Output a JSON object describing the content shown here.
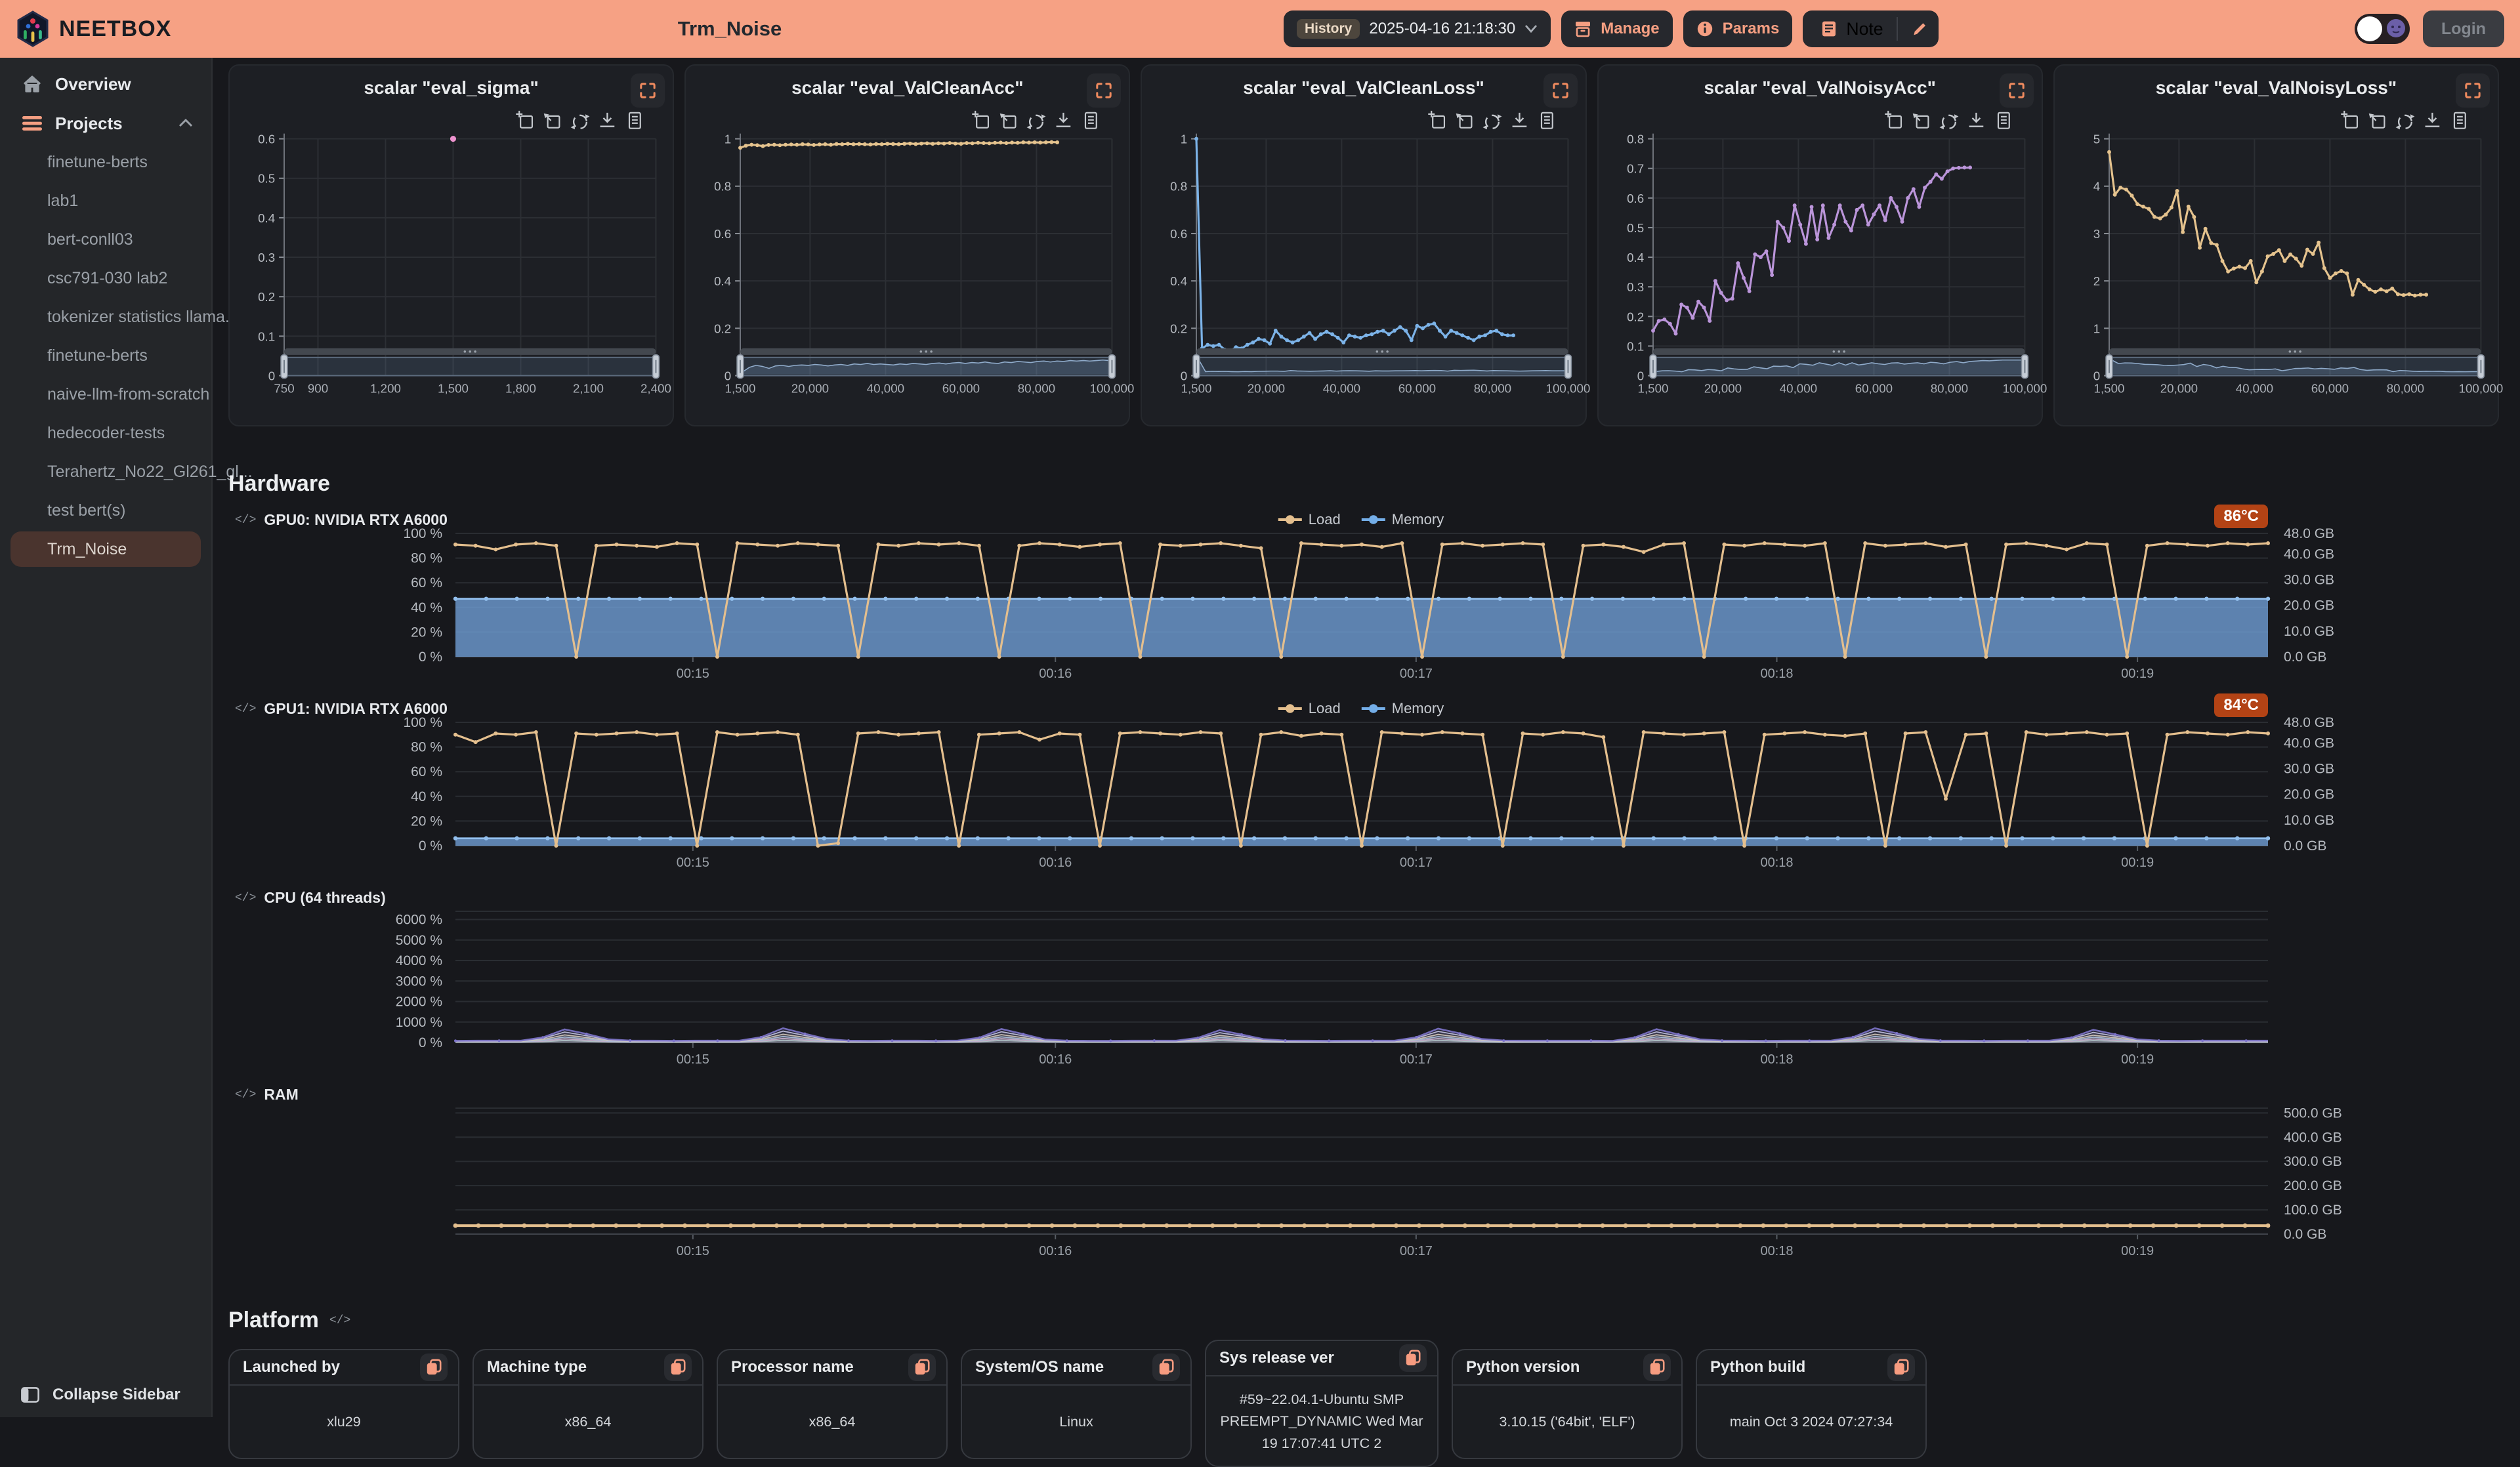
{
  "header": {
    "brand": "NEETBOX",
    "title": "Trm_Noise",
    "history_label": "History",
    "history_value": "2025-04-16 21:18:30",
    "manage_label": "Manage",
    "params_label": "Params",
    "note_label": "Note",
    "login_label": "Login"
  },
  "sidebar": {
    "overview": "Overview",
    "projects": "Projects",
    "items": [
      "finetune-berts",
      "lab1",
      "bert-conll03",
      "csc791-030 lab2",
      "tokenizer statistics llama...",
      "finetune-berts",
      "naive-llm-from-scratch",
      "hedecoder-tests",
      "Terahertz_No22_Gl261_gl...",
      "test bert(s)",
      "Trm_Noise"
    ],
    "collapse": "Collapse Sidebar"
  },
  "sections": {
    "hardware": "Hardware",
    "platform": "Platform"
  },
  "hardware": {
    "legend": {
      "load": "Load",
      "memory": "Memory"
    },
    "gpu0_label": "GPU0: NVIDIA RTX A6000",
    "gpu0_temp": "86°C",
    "gpu1_label": "GPU1: NVIDIA RTX A6000",
    "gpu1_temp": "84°C",
    "cpu_label": "CPU (64 threads)",
    "ram_label": "RAM"
  },
  "platform_cards": [
    {
      "label": "Launched by",
      "value": "xlu29"
    },
    {
      "label": "Machine type",
      "value": "x86_64"
    },
    {
      "label": "Processor name",
      "value": "x86_64"
    },
    {
      "label": "System/OS name",
      "value": "Linux"
    },
    {
      "label": "Sys release ver",
      "value": "#59~22.04.1-Ubuntu SMP PREEMPT_DYNAMIC Wed Mar 19 17:07:41 UTC 2"
    },
    {
      "label": "Python version",
      "value": "3.10.15 ('64bit', 'ELF')"
    },
    {
      "label": "Python build",
      "value": "main Oct 3 2024 07:27:34"
    }
  ],
  "chart_data": {
    "scalars": [
      {
        "kind": "scalar",
        "type": "scatter",
        "title": "scalar \"eval_sigma\"",
        "color": "#ee93cf",
        "x_range": [
          750,
          2400
        ],
        "y_range": [
          0,
          0.6
        ],
        "x_ticks": [
          {
            "v": 750,
            "l": "750"
          },
          {
            "v": 900,
            "l": "900"
          },
          {
            "v": 1200,
            "l": "1,200"
          },
          {
            "v": 1500,
            "l": "1,500"
          },
          {
            "v": 1800,
            "l": "1,800"
          },
          {
            "v": 2100,
            "l": "2,100"
          },
          {
            "v": 2400,
            "l": "2,400"
          }
        ],
        "y_ticks": [
          {
            "v": 0,
            "l": "0"
          },
          {
            "v": 0.1,
            "l": "0.1"
          },
          {
            "v": 0.2,
            "l": "0.2"
          },
          {
            "v": 0.3,
            "l": "0.3"
          },
          {
            "v": 0.4,
            "l": "0.4"
          },
          {
            "v": 0.5,
            "l": "0.5"
          },
          {
            "v": 0.6,
            "l": "0.6"
          }
        ],
        "points_only": true,
        "x": [
          1500
        ],
        "values": [
          0.6
        ]
      },
      {
        "kind": "scalar",
        "type": "line",
        "title": "scalar \"eval_ValCleanAcc\"",
        "color": "#e5c38e",
        "x_range": [
          1500,
          100000
        ],
        "y_range": [
          0,
          1
        ],
        "x_ticks": [
          {
            "v": 1500,
            "l": "1,500"
          },
          {
            "v": 20000,
            "l": "20,000"
          },
          {
            "v": 40000,
            "l": "40,000"
          },
          {
            "v": 60000,
            "l": "60,000"
          },
          {
            "v": 80000,
            "l": "80,000"
          },
          {
            "v": 100000,
            "l": "100,000"
          }
        ],
        "y_ticks": [
          {
            "v": 0,
            "l": "0"
          },
          {
            "v": 0.2,
            "l": "0.2"
          },
          {
            "v": 0.4,
            "l": "0.4"
          },
          {
            "v": 0.6,
            "l": "0.6"
          },
          {
            "v": 0.8,
            "l": "0.8"
          },
          {
            "v": 1,
            "l": "1"
          }
        ],
        "x_start": 1500,
        "x_step": 1500,
        "values": [
          0.962,
          0.971,
          0.975,
          0.973,
          0.969,
          0.974,
          0.975,
          0.973,
          0.975,
          0.976,
          0.975,
          0.977,
          0.976,
          0.974,
          0.976,
          0.977,
          0.975,
          0.978,
          0.977,
          0.979,
          0.977,
          0.978,
          0.977,
          0.976,
          0.978,
          0.977,
          0.979,
          0.978,
          0.977,
          0.979,
          0.98,
          0.978,
          0.98,
          0.981,
          0.979,
          0.981,
          0.98,
          0.982,
          0.98,
          0.979,
          0.982,
          0.981,
          0.983,
          0.982,
          0.981,
          0.983,
          0.984,
          0.982,
          0.984,
          0.983,
          0.985,
          0.984,
          0.985,
          0.984,
          0.985,
          0.986,
          0.985
        ],
        "preview": true
      },
      {
        "kind": "scalar",
        "type": "line",
        "title": "scalar \"eval_ValCleanLoss\"",
        "color": "#7cb3e8",
        "x_range": [
          1500,
          100000
        ],
        "y_range": [
          0,
          1
        ],
        "x_ticks": [
          {
            "v": 1500,
            "l": "1,500"
          },
          {
            "v": 20000,
            "l": "20,000"
          },
          {
            "v": 40000,
            "l": "40,000"
          },
          {
            "v": 60000,
            "l": "60,000"
          },
          {
            "v": 80000,
            "l": "80,000"
          },
          {
            "v": 100000,
            "l": "100,000"
          }
        ],
        "y_ticks": [
          {
            "v": 0,
            "l": "0"
          },
          {
            "v": 0.2,
            "l": "0.2"
          },
          {
            "v": 0.4,
            "l": "0.4"
          },
          {
            "v": 0.6,
            "l": "0.6"
          },
          {
            "v": 0.8,
            "l": "0.8"
          },
          {
            "v": 1,
            "l": "1"
          }
        ],
        "x_start": 1500,
        "x_step": 1500,
        "values": [
          1.0,
          0.115,
          0.13,
          0.125,
          0.13,
          0.11,
          0.105,
          0.12,
          0.115,
          0.13,
          0.14,
          0.155,
          0.15,
          0.135,
          0.19,
          0.165,
          0.15,
          0.14,
          0.15,
          0.165,
          0.18,
          0.155,
          0.175,
          0.185,
          0.175,
          0.16,
          0.14,
          0.17,
          0.165,
          0.16,
          0.17,
          0.175,
          0.185,
          0.19,
          0.175,
          0.19,
          0.205,
          0.19,
          0.15,
          0.21,
          0.2,
          0.215,
          0.22,
          0.19,
          0.165,
          0.19,
          0.18,
          0.17,
          0.16,
          0.15,
          0.165,
          0.17,
          0.185,
          0.19,
          0.175,
          0.17,
          0.17
        ],
        "preview": true
      },
      {
        "kind": "scalar",
        "type": "line",
        "title": "scalar \"eval_ValNoisyAcc\"",
        "color": "#bb95da",
        "x_range": [
          1500,
          100000
        ],
        "y_range": [
          0,
          0.8
        ],
        "x_ticks": [
          {
            "v": 1500,
            "l": "1,500"
          },
          {
            "v": 20000,
            "l": "20,000"
          },
          {
            "v": 40000,
            "l": "40,000"
          },
          {
            "v": 60000,
            "l": "60,000"
          },
          {
            "v": 80000,
            "l": "80,000"
          },
          {
            "v": 100000,
            "l": "100,000"
          }
        ],
        "y_ticks": [
          {
            "v": 0,
            "l": "0"
          },
          {
            "v": 0.1,
            "l": "0.1"
          },
          {
            "v": 0.2,
            "l": "0.2"
          },
          {
            "v": 0.3,
            "l": "0.3"
          },
          {
            "v": 0.4,
            "l": "0.4"
          },
          {
            "v": 0.5,
            "l": "0.5"
          },
          {
            "v": 0.6,
            "l": "0.6"
          },
          {
            "v": 0.7,
            "l": "0.7"
          },
          {
            "v": 0.8,
            "l": "0.8"
          }
        ],
        "x_start": 1500,
        "x_step": 1500,
        "values": [
          0.152,
          0.185,
          0.19,
          0.175,
          0.142,
          0.24,
          0.23,
          0.195,
          0.25,
          0.23,
          0.185,
          0.32,
          0.28,
          0.255,
          0.26,
          0.38,
          0.33,
          0.285,
          0.41,
          0.4,
          0.42,
          0.34,
          0.52,
          0.5,
          0.455,
          0.575,
          0.51,
          0.445,
          0.57,
          0.46,
          0.575,
          0.465,
          0.51,
          0.575,
          0.52,
          0.49,
          0.56,
          0.575,
          0.51,
          0.545,
          0.575,
          0.525,
          0.6,
          0.57,
          0.52,
          0.6,
          0.63,
          0.57,
          0.635,
          0.655,
          0.68,
          0.665,
          0.69,
          0.7,
          0.702,
          0.703,
          0.703
        ],
        "preview": true
      },
      {
        "kind": "scalar",
        "type": "line",
        "title": "scalar \"eval_ValNoisyLoss\"",
        "color": "#e5c38e",
        "x_range": [
          1500,
          100000
        ],
        "y_range": [
          0,
          5
        ],
        "x_ticks": [
          {
            "v": 1500,
            "l": "1,500"
          },
          {
            "v": 20000,
            "l": "20,000"
          },
          {
            "v": 40000,
            "l": "40,000"
          },
          {
            "v": 60000,
            "l": "60,000"
          },
          {
            "v": 80000,
            "l": "80,000"
          },
          {
            "v": 100000,
            "l": "100,000"
          }
        ],
        "y_ticks": [
          {
            "v": 0,
            "l": "0"
          },
          {
            "v": 1,
            "l": "1"
          },
          {
            "v": 2,
            "l": "2"
          },
          {
            "v": 3,
            "l": "3"
          },
          {
            "v": 4,
            "l": "4"
          },
          {
            "v": 5,
            "l": "5"
          }
        ],
        "x_start": 1500,
        "x_step": 1500,
        "values": [
          4.72,
          3.82,
          3.97,
          3.93,
          3.8,
          3.62,
          3.57,
          3.52,
          3.35,
          3.32,
          3.4,
          3.55,
          3.9,
          3.03,
          3.57,
          3.35,
          2.7,
          3.1,
          2.8,
          2.76,
          2.42,
          2.2,
          2.26,
          2.3,
          2.27,
          2.42,
          1.97,
          2.2,
          2.52,
          2.57,
          2.65,
          2.42,
          2.56,
          2.47,
          2.32,
          2.66,
          2.57,
          2.81,
          2.27,
          2.06,
          2.16,
          2.21,
          2.16,
          1.71,
          2.02,
          1.92,
          1.82,
          1.77,
          1.82,
          1.78,
          1.84,
          1.72,
          1.7,
          1.72,
          1.69,
          1.71,
          1.71
        ],
        "preview": true
      }
    ],
    "hardware": {
      "time_ticks": [
        {
          "f": 0.131,
          "l": "00:15"
        },
        {
          "f": 0.331,
          "l": "00:16"
        },
        {
          "f": 0.53,
          "l": "00:17"
        },
        {
          "f": 0.729,
          "l": "00:18"
        },
        {
          "f": 0.928,
          "l": "00:19"
        }
      ],
      "gpu0": {
        "kind": "gpu",
        "type": "line+area",
        "load_color": "#e4bf8e",
        "mem_color": "#6f9ed4",
        "mem_line_color": "#93c0ee",
        "y_unit": "%",
        "left_ticks": [
          0,
          20,
          40,
          60,
          80,
          100
        ],
        "mem_total_gb": 48,
        "right_ticks": [
          {
            "v": 48,
            "l": "48.0 GB"
          },
          {
            "v": 40,
            "l": "40.0 GB"
          },
          {
            "v": 30,
            "l": "30.0 GB"
          },
          {
            "v": 20,
            "l": "20.0 GB"
          },
          {
            "v": 10,
            "l": "10.0 GB"
          },
          {
            "v": 0,
            "l": "0.0 GB"
          }
        ],
        "memory_pct": 47,
        "load_pct": [
          91,
          90,
          87,
          91,
          92,
          90,
          0,
          90,
          91,
          90,
          89,
          92,
          91,
          0,
          92,
          91,
          90,
          92,
          91,
          90,
          0,
          91,
          90,
          92,
          91,
          92,
          90,
          0,
          90,
          92,
          91,
          89,
          91,
          92,
          0,
          91,
          90,
          91,
          92,
          90,
          88,
          0,
          92,
          91,
          90,
          91,
          89,
          92,
          0,
          91,
          92,
          90,
          91,
          92,
          91,
          0,
          90,
          91,
          89,
          85,
          91,
          92,
          0,
          91,
          90,
          92,
          91,
          90,
          92,
          0,
          92,
          90,
          91,
          92,
          89,
          91,
          0,
          91,
          92,
          90,
          87,
          92,
          91,
          0,
          90,
          92,
          91,
          90,
          92,
          91,
          92
        ]
      },
      "gpu1": {
        "kind": "gpu",
        "type": "line+area",
        "load_color": "#e4bf8e",
        "mem_color": "#6f9ed4",
        "mem_line_color": "#93c0ee",
        "y_unit": "%",
        "left_ticks": [
          0,
          20,
          40,
          60,
          80,
          100
        ],
        "mem_total_gb": 48,
        "right_ticks": [
          {
            "v": 48,
            "l": "48.0 GB"
          },
          {
            "v": 40,
            "l": "40.0 GB"
          },
          {
            "v": 30,
            "l": "30.0 GB"
          },
          {
            "v": 20,
            "l": "20.0 GB"
          },
          {
            "v": 10,
            "l": "10.0 GB"
          },
          {
            "v": 0,
            "l": "0.0 GB"
          }
        ],
        "memory_pct": 6,
        "load_pct": [
          90,
          84,
          91,
          90,
          92,
          0,
          91,
          90,
          91,
          92,
          90,
          91,
          0,
          92,
          90,
          91,
          92,
          90,
          0,
          2,
          91,
          92,
          90,
          91,
          92,
          0,
          90,
          91,
          92,
          86,
          91,
          90,
          0,
          91,
          92,
          91,
          90,
          92,
          91,
          0,
          90,
          92,
          89,
          91,
          90,
          0,
          92,
          91,
          90,
          92,
          91,
          90,
          0,
          91,
          90,
          92,
          91,
          88,
          0,
          92,
          91,
          90,
          91,
          92,
          0,
          90,
          91,
          92,
          90,
          89,
          91,
          0,
          91,
          92,
          38,
          90,
          91,
          0,
          92,
          90,
          91,
          92,
          90,
          91,
          0,
          90,
          92,
          91,
          90,
          92,
          91
        ]
      },
      "cpu": {
        "kind": "cpu",
        "type": "line",
        "y_max": 6400,
        "left_ticks": [
          {
            "v": 0,
            "l": "0 %"
          },
          {
            "v": 1000,
            "l": "1000 %"
          },
          {
            "v": 2000,
            "l": "2000 %"
          },
          {
            "v": 3000,
            "l": "3000 %"
          },
          {
            "v": 4000,
            "l": "4000 %"
          },
          {
            "v": 5000,
            "l": "5000 %"
          },
          {
            "v": 6000,
            "l": "6000 %"
          }
        ],
        "profile": [
          85,
          90,
          88,
          92,
          250,
          640,
          420,
          160,
          95,
          88,
          86,
          92,
          90,
          88,
          260,
          700,
          430,
          170,
          92,
          86,
          88,
          90,
          86,
          95,
          240,
          660,
          410,
          150,
          90,
          85,
          84,
          88,
          92,
          90,
          230,
          600,
          390,
          165,
          96,
          90,
          85,
          91,
          89,
          87,
          255,
          680,
          440,
          175,
          93,
          88,
          87,
          89,
          91,
          86,
          245,
          650,
          400,
          155,
          94,
          87,
          86,
          90,
          88,
          93,
          265,
          700,
          450,
          180,
          92,
          89,
          85,
          92,
          90,
          88,
          235,
          620,
          395,
          160,
          91,
          86,
          88,
          90,
          87,
          91
        ],
        "layers": [
          {
            "color": "#7d74c9",
            "f": 1.0
          },
          {
            "color": "#cfd0e8",
            "f": 0.8
          },
          {
            "color": "#e3d7b4",
            "f": 0.58
          },
          {
            "color": "#a9c9e6",
            "f": 0.42
          },
          {
            "color": "#d9abc9",
            "f": 0.28
          },
          {
            "color": "#b2dec6",
            "f": 0.16
          }
        ]
      },
      "ram": {
        "kind": "ram",
        "type": "line",
        "color": "#e4bf8e",
        "y_max": 520,
        "right_ticks": [
          {
            "v": 500,
            "l": "500.0 GB"
          },
          {
            "v": 400,
            "l": "400.0 GB"
          },
          {
            "v": 300,
            "l": "300.0 GB"
          },
          {
            "v": 200,
            "l": "200.0 GB"
          },
          {
            "v": 100,
            "l": "100.0 GB"
          },
          {
            "v": 0,
            "l": "0.0 GB"
          }
        ],
        "value_gb": 35,
        "points": 80
      }
    }
  }
}
